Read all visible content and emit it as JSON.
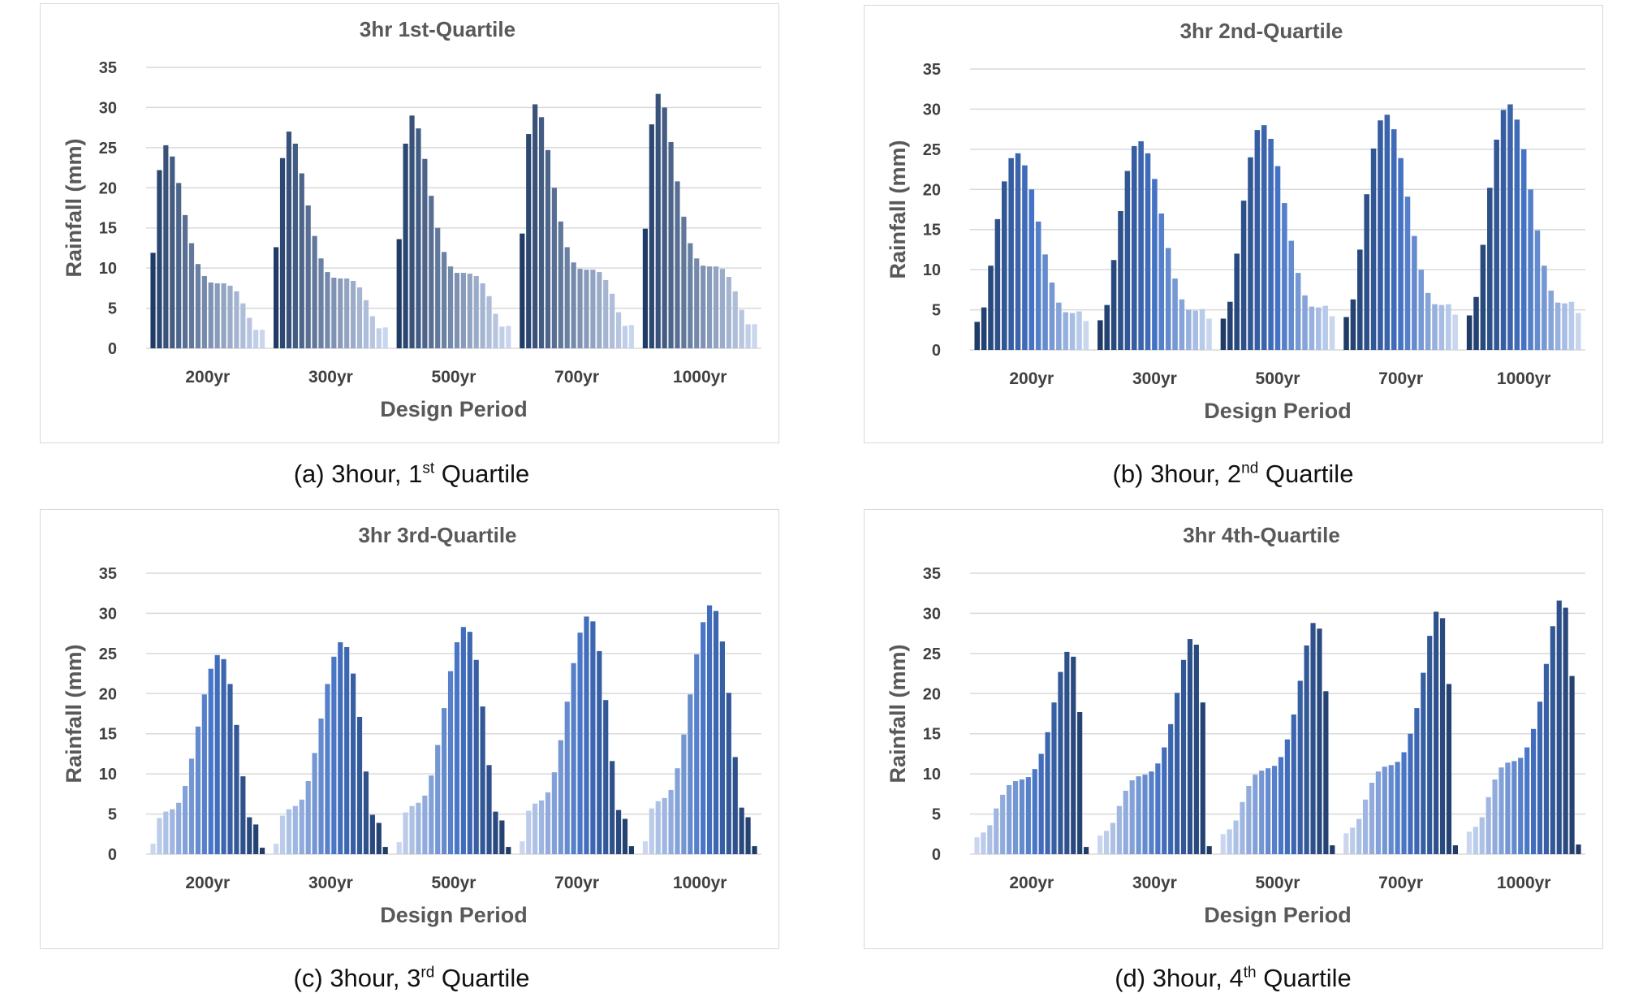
{
  "caption_prefix": "3hour, ",
  "captions": [
    {
      "letter": "(a)",
      "ordinal": "1",
      "suffix": "st",
      "word": "Quartile"
    },
    {
      "letter": "(b)",
      "ordinal": "2",
      "suffix": "nd",
      "word": "Quartile"
    },
    {
      "letter": "(c)",
      "ordinal": "3",
      "suffix": "rd",
      "word": "Quartile"
    },
    {
      "letter": "(d)",
      "ordinal": "4",
      "suffix": "th",
      "word": "Quartile"
    }
  ],
  "chart_data": [
    {
      "type": "bar",
      "title": "3hr 1st-Quartile",
      "xlabel": "Design Period",
      "ylabel": "Rainfall (mm)",
      "ylim": [
        0,
        35
      ],
      "yticks": [
        0,
        5,
        10,
        15,
        20,
        25,
        30,
        35
      ],
      "grid": true,
      "categories": [
        "200yr",
        "300yr",
        "500yr",
        "700yr",
        "1000yr"
      ],
      "series": [
        {
          "values": [
            11.9,
            12.6,
            13.6,
            14.3,
            14.9
          ]
        },
        {
          "values": [
            22.2,
            23.7,
            25.5,
            26.7,
            27.9
          ]
        },
        {
          "values": [
            25.3,
            27.0,
            29.0,
            30.4,
            31.7
          ]
        },
        {
          "values": [
            23.9,
            25.5,
            27.4,
            28.8,
            30.0
          ]
        },
        {
          "values": [
            20.6,
            21.8,
            23.6,
            24.7,
            25.7
          ]
        },
        {
          "values": [
            16.6,
            17.8,
            19.0,
            20.0,
            20.8
          ]
        },
        {
          "values": [
            13.1,
            14.0,
            15.0,
            15.8,
            16.4
          ]
        },
        {
          "values": [
            10.5,
            11.2,
            12.0,
            12.6,
            13.1
          ]
        },
        {
          "values": [
            9.0,
            9.5,
            10.2,
            10.7,
            11.2
          ]
        },
        {
          "values": [
            8.2,
            8.8,
            9.4,
            9.9,
            10.3
          ]
        },
        {
          "values": [
            8.1,
            8.7,
            9.4,
            9.8,
            10.2
          ]
        },
        {
          "values": [
            8.1,
            8.7,
            9.3,
            9.8,
            10.2
          ]
        },
        {
          "values": [
            7.8,
            8.4,
            9.0,
            9.5,
            9.9
          ]
        },
        {
          "values": [
            7.1,
            7.6,
            8.1,
            8.5,
            8.9
          ]
        },
        {
          "values": [
            5.6,
            6.0,
            6.5,
            6.8,
            7.1
          ]
        },
        {
          "values": [
            3.8,
            4.0,
            4.3,
            4.5,
            4.8
          ]
        },
        {
          "values": [
            2.3,
            2.5,
            2.7,
            2.8,
            3.0
          ]
        },
        {
          "values": [
            2.3,
            2.6,
            2.8,
            2.9,
            3.0
          ]
        }
      ]
    },
    {
      "type": "bar",
      "title": "3hr 2nd-Quartile",
      "xlabel": "Design Period",
      "ylabel": "Rainfall (mm)",
      "ylim": [
        0,
        35
      ],
      "yticks": [
        0,
        5,
        10,
        15,
        20,
        25,
        30,
        35
      ],
      "grid": true,
      "categories": [
        "200yr",
        "300yr",
        "500yr",
        "700yr",
        "1000yr"
      ],
      "series": [
        {
          "values": [
            3.5,
            3.7,
            3.9,
            4.1,
            4.3
          ]
        },
        {
          "values": [
            5.3,
            5.6,
            6.0,
            6.3,
            6.6
          ]
        },
        {
          "values": [
            10.5,
            11.2,
            12.0,
            12.5,
            13.1
          ]
        },
        {
          "values": [
            16.3,
            17.3,
            18.6,
            19.4,
            20.2
          ]
        },
        {
          "values": [
            21.0,
            22.3,
            24.0,
            25.1,
            26.2
          ]
        },
        {
          "values": [
            23.9,
            25.4,
            27.4,
            28.6,
            29.9
          ]
        },
        {
          "values": [
            24.5,
            26.0,
            28.0,
            29.3,
            30.6
          ]
        },
        {
          "values": [
            23.0,
            24.5,
            26.3,
            27.5,
            28.7
          ]
        },
        {
          "values": [
            20.0,
            21.3,
            22.9,
            23.9,
            25.0
          ]
        },
        {
          "values": [
            16.0,
            17.0,
            18.3,
            19.1,
            20.0
          ]
        },
        {
          "values": [
            11.9,
            12.7,
            13.6,
            14.2,
            14.9
          ]
        },
        {
          "values": [
            8.4,
            8.9,
            9.6,
            10.0,
            10.5
          ]
        },
        {
          "values": [
            5.9,
            6.3,
            6.8,
            7.1,
            7.4
          ]
        },
        {
          "values": [
            4.7,
            5.0,
            5.4,
            5.7,
            5.9
          ]
        },
        {
          "values": [
            4.6,
            4.9,
            5.3,
            5.6,
            5.8
          ]
        },
        {
          "values": [
            4.8,
            5.1,
            5.5,
            5.7,
            6.0
          ]
        },
        {
          "values": [
            3.6,
            3.9,
            4.2,
            4.4,
            4.6
          ]
        }
      ]
    },
    {
      "type": "bar",
      "title": "3hr 3rd-Quartile",
      "xlabel": "Design Period",
      "ylabel": "Rainfall (mm)",
      "ylim": [
        0,
        35
      ],
      "yticks": [
        0,
        5,
        10,
        15,
        20,
        25,
        30,
        35
      ],
      "grid": true,
      "categories": [
        "200yr",
        "300yr",
        "500yr",
        "700yr",
        "1000yr"
      ],
      "series": [
        {
          "values": [
            1.3,
            1.3,
            1.5,
            1.6,
            1.6
          ]
        },
        {
          "values": [
            4.5,
            4.8,
            5.2,
            5.4,
            5.7
          ]
        },
        {
          "values": [
            5.3,
            5.6,
            6.0,
            6.3,
            6.6
          ]
        },
        {
          "values": [
            5.6,
            6.0,
            6.4,
            6.7,
            7.0
          ]
        },
        {
          "values": [
            6.4,
            6.8,
            7.3,
            7.7,
            8.0
          ]
        },
        {
          "values": [
            8.5,
            9.1,
            9.8,
            10.2,
            10.7
          ]
        },
        {
          "values": [
            11.9,
            12.6,
            13.6,
            14.2,
            14.9
          ]
        },
        {
          "values": [
            15.9,
            16.9,
            18.2,
            19.0,
            19.9
          ]
        },
        {
          "values": [
            19.9,
            21.2,
            22.8,
            23.8,
            24.9
          ]
        },
        {
          "values": [
            23.1,
            24.6,
            26.4,
            27.6,
            28.9
          ]
        },
        {
          "values": [
            24.8,
            26.4,
            28.3,
            29.6,
            31.0
          ]
        },
        {
          "values": [
            24.3,
            25.8,
            27.7,
            29.0,
            30.3
          ]
        },
        {
          "values": [
            21.2,
            22.5,
            24.2,
            25.3,
            26.5
          ]
        },
        {
          "values": [
            16.1,
            17.1,
            18.4,
            19.2,
            20.1
          ]
        },
        {
          "values": [
            9.7,
            10.3,
            11.1,
            11.6,
            12.1
          ]
        },
        {
          "values": [
            4.6,
            4.9,
            5.3,
            5.5,
            5.8
          ]
        },
        {
          "values": [
            3.7,
            3.9,
            4.2,
            4.4,
            4.6
          ]
        },
        {
          "values": [
            0.8,
            0.9,
            0.9,
            1.0,
            1.0
          ]
        }
      ]
    },
    {
      "type": "bar",
      "title": "3hr 4th-Quartile",
      "xlabel": "Design Period",
      "ylabel": "Rainfall (mm)",
      "ylim": [
        0,
        35
      ],
      "yticks": [
        0,
        5,
        10,
        15,
        20,
        25,
        30,
        35
      ],
      "grid": true,
      "categories": [
        "200yr",
        "300yr",
        "500yr",
        "700yr",
        "1000yr"
      ],
      "series": [
        {
          "values": [
            2.1,
            2.3,
            2.5,
            2.6,
            2.8
          ]
        },
        {
          "values": [
            2.7,
            2.9,
            3.1,
            3.3,
            3.4
          ]
        },
        {
          "values": [
            3.6,
            3.9,
            4.2,
            4.4,
            4.6
          ]
        },
        {
          "values": [
            5.7,
            6.0,
            6.5,
            6.8,
            7.1
          ]
        },
        {
          "values": [
            7.4,
            7.9,
            8.5,
            8.9,
            9.3
          ]
        },
        {
          "values": [
            8.6,
            9.2,
            9.9,
            10.3,
            10.8
          ]
        },
        {
          "values": [
            9.1,
            9.7,
            10.4,
            10.9,
            11.4
          ]
        },
        {
          "values": [
            9.3,
            9.9,
            10.7,
            11.1,
            11.6
          ]
        },
        {
          "values": [
            9.6,
            10.3,
            11.0,
            11.5,
            12.0
          ]
        },
        {
          "values": [
            10.6,
            11.3,
            12.1,
            12.7,
            13.3
          ]
        },
        {
          "values": [
            12.5,
            13.3,
            14.3,
            15.0,
            15.6
          ]
        },
        {
          "values": [
            15.2,
            16.2,
            17.4,
            18.2,
            19.0
          ]
        },
        {
          "values": [
            18.9,
            20.1,
            21.6,
            22.6,
            23.7
          ]
        },
        {
          "values": [
            22.7,
            24.2,
            26.0,
            27.2,
            28.4
          ]
        },
        {
          "values": [
            25.2,
            26.8,
            28.8,
            30.2,
            31.6
          ]
        },
        {
          "values": [
            24.6,
            26.1,
            28.1,
            29.4,
            30.7
          ]
        },
        {
          "values": [
            17.7,
            18.9,
            20.3,
            21.2,
            22.2
          ]
        },
        {
          "values": [
            0.9,
            1.0,
            1.1,
            1.1,
            1.2
          ]
        }
      ]
    }
  ],
  "colors": {
    "dark": "#1f3b66",
    "mid": "#4472c4",
    "light": "#c9d6ee",
    "title": "#595959",
    "tick": "#404040",
    "grid": "#d9d9d9",
    "border": "#d9d9d9"
  },
  "gradients": [
    "dark-to-light",
    "dark-mid-light",
    "light-to-dark",
    "light-to-dark"
  ]
}
